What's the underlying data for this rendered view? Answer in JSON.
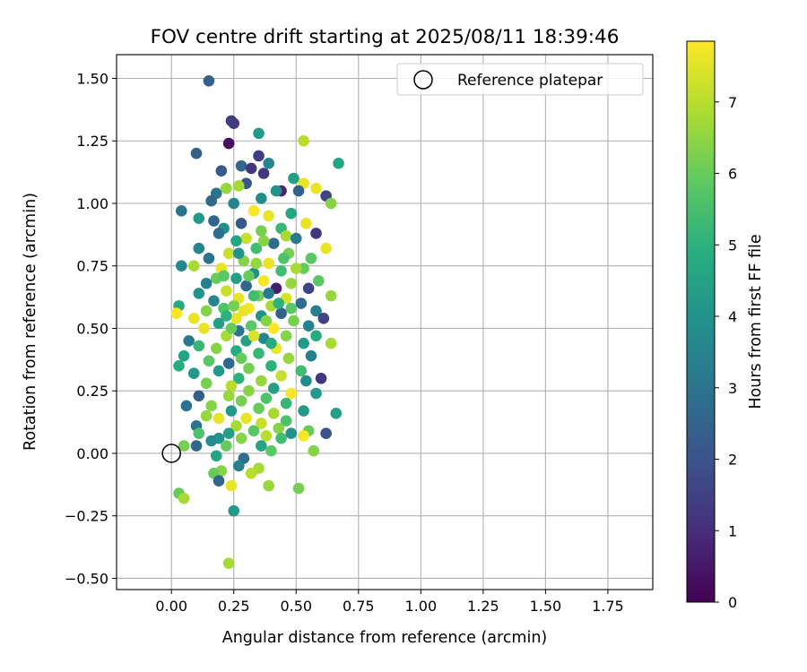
{
  "chart_data": {
    "type": "scatter",
    "title": "FOV centre drift starting at 2025/08/11 18:39:46",
    "xlabel": "Angular distance from reference (arcmin)",
    "ylabel": "Rotation from reference (arcmin)",
    "xlim": [
      -0.22,
      1.93
    ],
    "ylim": [
      -0.545,
      1.595
    ],
    "x_ticks": [
      0.0,
      0.25,
      0.5,
      0.75,
      1.0,
      1.25,
      1.5,
      1.75
    ],
    "x_tick_labels": [
      "0.00",
      "0.25",
      "0.50",
      "0.75",
      "1.00",
      "1.25",
      "1.50",
      "1.75"
    ],
    "y_ticks": [
      -0.5,
      -0.25,
      0.0,
      0.25,
      0.5,
      0.75,
      1.0,
      1.25,
      1.5
    ],
    "y_tick_labels": [
      "−0.50",
      "−0.25",
      "0.00",
      "0.25",
      "0.50",
      "0.75",
      "1.00",
      "1.25",
      "1.50"
    ],
    "grid": true,
    "legend": {
      "position": "top-right",
      "entries": [
        "Reference platepar"
      ]
    },
    "reference_point": {
      "x": 0.0,
      "y": 0.0
    },
    "colorbar": {
      "label": "Hours from first FF file",
      "range": [
        0,
        7.85
      ],
      "ticks": [
        0,
        1,
        2,
        3,
        4,
        5,
        6,
        7
      ],
      "tick_labels": [
        "0",
        "1",
        "2",
        "3",
        "4",
        "5",
        "6",
        "7"
      ],
      "colormap": "viridis"
    },
    "points": [
      [
        0.15,
        1.49,
        2.4
      ],
      [
        0.24,
        1.33,
        1.4
      ],
      [
        0.25,
        1.32,
        1.4
      ],
      [
        0.35,
        1.28,
        4.2
      ],
      [
        0.23,
        1.24,
        0.3
      ],
      [
        0.53,
        1.25,
        7.0
      ],
      [
        0.1,
        1.2,
        2.4
      ],
      [
        0.35,
        1.19,
        1.4
      ],
      [
        0.39,
        1.16,
        3.6
      ],
      [
        0.67,
        1.16,
        4.6
      ],
      [
        0.28,
        1.15,
        2.6
      ],
      [
        0.32,
        1.14,
        1.2
      ],
      [
        0.37,
        1.12,
        1.3
      ],
      [
        0.2,
        1.13,
        2.2
      ],
      [
        0.49,
        1.1,
        4.4
      ],
      [
        0.53,
        1.08,
        7.6
      ],
      [
        0.3,
        1.08,
        2.1
      ],
      [
        0.44,
        1.05,
        0.8
      ],
      [
        0.18,
        1.04,
        3.0
      ],
      [
        0.58,
        1.06,
        7.6
      ],
      [
        0.27,
        1.07,
        6.8
      ],
      [
        0.62,
        1.03,
        1.6
      ],
      [
        0.16,
        1.01,
        2.6
      ],
      [
        0.22,
        1.06,
        6.6
      ],
      [
        0.51,
        1.05,
        2.4
      ],
      [
        0.36,
        1.02,
        3.8
      ],
      [
        0.42,
        1.05,
        4.0
      ],
      [
        0.64,
        1.0,
        6.4
      ],
      [
        0.25,
        1.0,
        3.5
      ],
      [
        0.04,
        0.97,
        3.0
      ],
      [
        0.48,
        0.96,
        4.6
      ],
      [
        0.33,
        0.97,
        7.8
      ],
      [
        0.39,
        0.95,
        7.6
      ],
      [
        0.54,
        0.92,
        7.6
      ],
      [
        0.11,
        0.94,
        4.2
      ],
      [
        0.17,
        0.93,
        2.6
      ],
      [
        0.28,
        0.92,
        2.2
      ],
      [
        0.44,
        0.9,
        5.2
      ],
      [
        0.21,
        0.9,
        3.9
      ],
      [
        0.36,
        0.89,
        6.2
      ],
      [
        0.58,
        0.88,
        1.2
      ],
      [
        0.46,
        0.87,
        6.8
      ],
      [
        0.19,
        0.88,
        2.8
      ],
      [
        0.3,
        0.86,
        7.2
      ],
      [
        0.5,
        0.86,
        3.2
      ],
      [
        0.26,
        0.85,
        4.6
      ],
      [
        0.41,
        0.84,
        2.8
      ],
      [
        0.62,
        0.82,
        7.6
      ],
      [
        0.11,
        0.82,
        3.6
      ],
      [
        0.34,
        0.82,
        5.4
      ],
      [
        0.23,
        0.8,
        7.2
      ],
      [
        0.47,
        0.8,
        6.2
      ],
      [
        0.56,
        0.78,
        5.8
      ],
      [
        0.15,
        0.78,
        3.0
      ],
      [
        0.29,
        0.77,
        6.4
      ],
      [
        0.39,
        0.76,
        7.6
      ],
      [
        0.04,
        0.75,
        3.6
      ],
      [
        0.09,
        0.75,
        6.8
      ],
      [
        0.2,
        0.74,
        7.6
      ],
      [
        0.44,
        0.73,
        5.4
      ],
      [
        0.53,
        0.74,
        6.0
      ],
      [
        0.33,
        0.72,
        3.9
      ],
      [
        0.18,
        0.7,
        6.0
      ],
      [
        0.26,
        0.7,
        4.4
      ],
      [
        0.37,
        0.69,
        7.8
      ],
      [
        0.48,
        0.68,
        6.6
      ],
      [
        0.59,
        0.69,
        5.8
      ],
      [
        0.14,
        0.68,
        3.4
      ],
      [
        0.3,
        0.67,
        2.6
      ],
      [
        0.42,
        0.66,
        0.7
      ],
      [
        0.55,
        0.66,
        1.6
      ],
      [
        0.22,
        0.65,
        7.2
      ],
      [
        0.64,
        0.63,
        6.6
      ],
      [
        0.11,
        0.64,
        4.0
      ],
      [
        0.35,
        0.63,
        6.2
      ],
      [
        0.46,
        0.62,
        7.4
      ],
      [
        0.27,
        0.62,
        7.6
      ],
      [
        0.17,
        0.61,
        3.6
      ],
      [
        0.52,
        0.6,
        2.8
      ],
      [
        0.03,
        0.59,
        4.8
      ],
      [
        0.4,
        0.59,
        6.8
      ],
      [
        0.31,
        0.58,
        7.8
      ],
      [
        0.21,
        0.58,
        5.6
      ],
      [
        0.58,
        0.57,
        3.4
      ],
      [
        0.14,
        0.57,
        6.4
      ],
      [
        0.44,
        0.56,
        2.4
      ],
      [
        0.02,
        0.56,
        7.8
      ],
      [
        0.36,
        0.55,
        4.0
      ],
      [
        0.26,
        0.54,
        7.6
      ],
      [
        0.61,
        0.54,
        1.6
      ],
      [
        0.09,
        0.54,
        7.6
      ],
      [
        0.49,
        0.53,
        6.2
      ],
      [
        0.19,
        0.52,
        4.4
      ],
      [
        0.55,
        0.51,
        3.4
      ],
      [
        0.32,
        0.51,
        5.8
      ],
      [
        0.41,
        0.5,
        7.8
      ],
      [
        0.13,
        0.5,
        7.6
      ],
      [
        0.27,
        0.49,
        3.0
      ],
      [
        0.07,
        0.45,
        3.2
      ],
      [
        0.58,
        0.47,
        4.8
      ],
      [
        0.46,
        0.47,
        6.4
      ],
      [
        0.22,
        0.47,
        6.8
      ],
      [
        0.37,
        0.46,
        3.6
      ],
      [
        0.3,
        0.45,
        4.4
      ],
      [
        0.64,
        0.44,
        6.8
      ],
      [
        0.53,
        0.44,
        4.2
      ],
      [
        0.11,
        0.43,
        5.2
      ],
      [
        0.18,
        0.42,
        6.4
      ],
      [
        0.42,
        0.42,
        7.6
      ],
      [
        0.26,
        0.41,
        4.8
      ],
      [
        0.35,
        0.4,
        5.2
      ],
      [
        0.56,
        0.39,
        3.4
      ],
      [
        0.05,
        0.39,
        4.6
      ],
      [
        0.47,
        0.38,
        6.6
      ],
      [
        0.15,
        0.37,
        5.8
      ],
      [
        0.23,
        0.36,
        2.6
      ],
      [
        0.4,
        0.35,
        5.0
      ],
      [
        0.03,
        0.35,
        4.8
      ],
      [
        0.31,
        0.34,
        6.2
      ],
      [
        0.52,
        0.33,
        5.4
      ],
      [
        0.19,
        0.33,
        4.2
      ],
      [
        0.6,
        0.3,
        1.2
      ],
      [
        0.09,
        0.32,
        4.2
      ],
      [
        0.44,
        0.31,
        7.2
      ],
      [
        0.27,
        0.3,
        5.0
      ],
      [
        0.36,
        0.29,
        6.6
      ],
      [
        0.54,
        0.29,
        3.8
      ],
      [
        0.14,
        0.28,
        6.2
      ],
      [
        0.24,
        0.27,
        7.0
      ],
      [
        0.41,
        0.26,
        4.4
      ],
      [
        0.31,
        0.25,
        6.4
      ],
      [
        0.48,
        0.24,
        7.8
      ],
      [
        0.58,
        0.24,
        4.2
      ],
      [
        0.11,
        0.23,
        2.4
      ],
      [
        0.23,
        0.23,
        6.6
      ],
      [
        0.38,
        0.22,
        5.6
      ],
      [
        0.28,
        0.21,
        6.2
      ],
      [
        0.46,
        0.2,
        5.2
      ],
      [
        0.06,
        0.19,
        3.0
      ],
      [
        0.16,
        0.19,
        6.4
      ],
      [
        0.35,
        0.18,
        6.0
      ],
      [
        0.53,
        0.17,
        4.2
      ],
      [
        0.24,
        0.17,
        4.2
      ],
      [
        0.66,
        0.16,
        4.4
      ],
      [
        0.41,
        0.16,
        6.8
      ],
      [
        0.14,
        0.15,
        6.6
      ],
      [
        0.3,
        0.14,
        7.6
      ],
      [
        0.19,
        0.14,
        7.6
      ],
      [
        0.46,
        0.13,
        5.6
      ],
      [
        0.36,
        0.12,
        7.2
      ],
      [
        0.26,
        0.11,
        6.8
      ],
      [
        0.1,
        0.11,
        3.0
      ],
      [
        0.43,
        0.1,
        6.4
      ],
      [
        0.55,
        0.09,
        6.0
      ],
      [
        0.33,
        0.09,
        5.8
      ],
      [
        0.23,
        0.08,
        4.4
      ],
      [
        0.11,
        0.08,
        5.6
      ],
      [
        0.48,
        0.08,
        4.0
      ],
      [
        0.62,
        0.08,
        2.0
      ],
      [
        0.38,
        0.07,
        7.0
      ],
      [
        0.53,
        0.07,
        7.8
      ],
      [
        0.19,
        0.06,
        4.0
      ],
      [
        0.28,
        0.06,
        6.4
      ],
      [
        0.16,
        0.05,
        3.8
      ],
      [
        0.44,
        0.06,
        5.4
      ],
      [
        0.05,
        0.03,
        6.2
      ],
      [
        0.1,
        0.03,
        2.6
      ],
      [
        0.36,
        0.03,
        4.6
      ],
      [
        0.22,
        0.03,
        6.0
      ],
      [
        0.4,
        0.01,
        5.8
      ],
      [
        0.57,
        0.01,
        6.4
      ],
      [
        0.18,
        -0.01,
        4.6
      ],
      [
        0.29,
        -0.02,
        2.8
      ],
      [
        0.27,
        -0.05,
        3.4
      ],
      [
        0.35,
        -0.06,
        6.8
      ],
      [
        0.2,
        -0.07,
        6.4
      ],
      [
        0.17,
        -0.08,
        6.0
      ],
      [
        0.32,
        -0.08,
        7.0
      ],
      [
        0.19,
        -0.11,
        2.6
      ],
      [
        0.24,
        -0.13,
        7.6
      ],
      [
        0.39,
        -0.13,
        6.6
      ],
      [
        0.51,
        -0.14,
        6.2
      ],
      [
        0.03,
        -0.16,
        6.0
      ],
      [
        0.05,
        -0.18,
        6.8
      ],
      [
        0.25,
        -0.23,
        4.2
      ],
      [
        0.23,
        -0.44,
        6.8
      ],
      [
        0.33,
        0.63,
        5.4
      ],
      [
        0.29,
        0.57,
        7.6
      ],
      [
        0.38,
        0.53,
        6.4
      ],
      [
        0.43,
        0.6,
        5.0
      ],
      [
        0.21,
        0.71,
        5.8
      ],
      [
        0.34,
        0.76,
        6.6
      ],
      [
        0.25,
        0.59,
        6.2
      ],
      [
        0.39,
        0.64,
        3.2
      ],
      [
        0.31,
        0.71,
        6.0
      ],
      [
        0.45,
        0.78,
        5.6
      ],
      [
        0.27,
        0.8,
        4.0
      ],
      [
        0.37,
        0.85,
        6.4
      ],
      [
        0.22,
        0.55,
        5.0
      ],
      [
        0.48,
        0.58,
        5.8
      ],
      [
        0.33,
        0.47,
        7.4
      ],
      [
        0.28,
        0.38,
        6.0
      ],
      [
        0.4,
        0.44,
        4.8
      ],
      [
        0.24,
        0.5,
        6.0
      ],
      [
        0.5,
        0.74,
        6.8
      ]
    ]
  }
}
